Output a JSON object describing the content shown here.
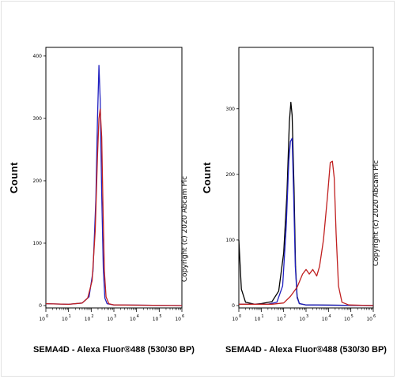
{
  "copyright": "Copyright (c) 2020 Abcam Plc",
  "chart_data": [
    {
      "type": "line",
      "title": "",
      "xlabel": "SEMA4D - Alexa Fluor®488 (530/30 BP)",
      "ylabel": "Count",
      "x_scale": "log",
      "xlim": [
        1,
        1000000
      ],
      "ylim": [
        0,
        410
      ],
      "x_ticks": [
        "10",
        "10",
        "10",
        "10",
        "10",
        "10",
        "10"
      ],
      "x_tick_exponents": [
        "0",
        "1",
        "2",
        "3",
        "4",
        "5",
        "6"
      ],
      "y_ticks": [
        "0",
        "100",
        "200",
        "300",
        "400"
      ],
      "y_tick_values": [
        0,
        100,
        200,
        300,
        400
      ],
      "series": [
        {
          "color": "#2020c0",
          "points": [
            [
              1,
              3
            ],
            [
              10,
              2
            ],
            [
              40,
              4
            ],
            [
              80,
              14
            ],
            [
              120,
              55
            ],
            [
              160,
              170
            ],
            [
              190,
              300
            ],
            [
              220,
              385
            ],
            [
              250,
              330
            ],
            [
              290,
              180
            ],
            [
              340,
              60
            ],
            [
              400,
              12
            ],
            [
              500,
              3
            ],
            [
              1000,
              1
            ],
            [
              1000000,
              0
            ]
          ]
        },
        {
          "color": "#c02020",
          "points": [
            [
              1,
              3
            ],
            [
              10,
              2
            ],
            [
              40,
              4
            ],
            [
              70,
              12
            ],
            [
              110,
              40
            ],
            [
              150,
              120
            ],
            [
              190,
              240
            ],
            [
              220,
              300
            ],
            [
              250,
              315
            ],
            [
              290,
              270
            ],
            [
              330,
              160
            ],
            [
              380,
              55
            ],
            [
              450,
              14
            ],
            [
              600,
              3
            ],
            [
              1000,
              1
            ],
            [
              1000000,
              0
            ]
          ]
        }
      ]
    },
    {
      "type": "line",
      "title": "",
      "xlabel": "SEMA4D - Alexa Fluor®488 (530/30 BP)",
      "ylabel": "Count",
      "x_scale": "log",
      "xlim": [
        1,
        1000000
      ],
      "ylim": [
        0,
        390
      ],
      "x_ticks": [
        "10",
        "10",
        "10",
        "10",
        "10",
        "10",
        "10"
      ],
      "x_tick_exponents": [
        "0",
        "1",
        "2",
        "3",
        "4",
        "5",
        "6"
      ],
      "y_ticks": [
        "0",
        "100",
        "200",
        "300"
      ],
      "y_tick_values": [
        0,
        100,
        200,
        300
      ],
      "series": [
        {
          "color": "#000000",
          "points": [
            [
              1,
              100
            ],
            [
              1.3,
              25
            ],
            [
              2,
              5
            ],
            [
              5,
              2
            ],
            [
              10,
              3
            ],
            [
              30,
              6
            ],
            [
              60,
              22
            ],
            [
              100,
              80
            ],
            [
              140,
              170
            ],
            [
              180,
              280
            ],
            [
              210,
              310
            ],
            [
              240,
              290
            ],
            [
              290,
              180
            ],
            [
              340,
              60
            ],
            [
              400,
              14
            ],
            [
              500,
              3
            ],
            [
              1000,
              1
            ],
            [
              1000000,
              0
            ]
          ]
        },
        {
          "color": "#2020c0",
          "points": [
            [
              1,
              2
            ],
            [
              20,
              2
            ],
            [
              50,
              5
            ],
            [
              90,
              30
            ],
            [
              130,
              120
            ],
            [
              170,
              220
            ],
            [
              200,
              250
            ],
            [
              240,
              255
            ],
            [
              280,
              170
            ],
            [
              330,
              60
            ],
            [
              400,
              12
            ],
            [
              500,
              3
            ],
            [
              1000,
              1
            ],
            [
              1000000,
              0
            ]
          ]
        },
        {
          "color": "#c02020",
          "points": [
            [
              1,
              2
            ],
            [
              30,
              2
            ],
            [
              100,
              4
            ],
            [
              200,
              14
            ],
            [
              400,
              28
            ],
            [
              700,
              48
            ],
            [
              1000,
              55
            ],
            [
              1400,
              48
            ],
            [
              2000,
              55
            ],
            [
              3000,
              45
            ],
            [
              4000,
              60
            ],
            [
              6000,
              100
            ],
            [
              9000,
              165
            ],
            [
              12000,
              218
            ],
            [
              15000,
              220
            ],
            [
              18000,
              195
            ],
            [
              22000,
              110
            ],
            [
              28000,
              30
            ],
            [
              40000,
              5
            ],
            [
              80000,
              1
            ],
            [
              1000000,
              0
            ]
          ]
        }
      ]
    }
  ]
}
